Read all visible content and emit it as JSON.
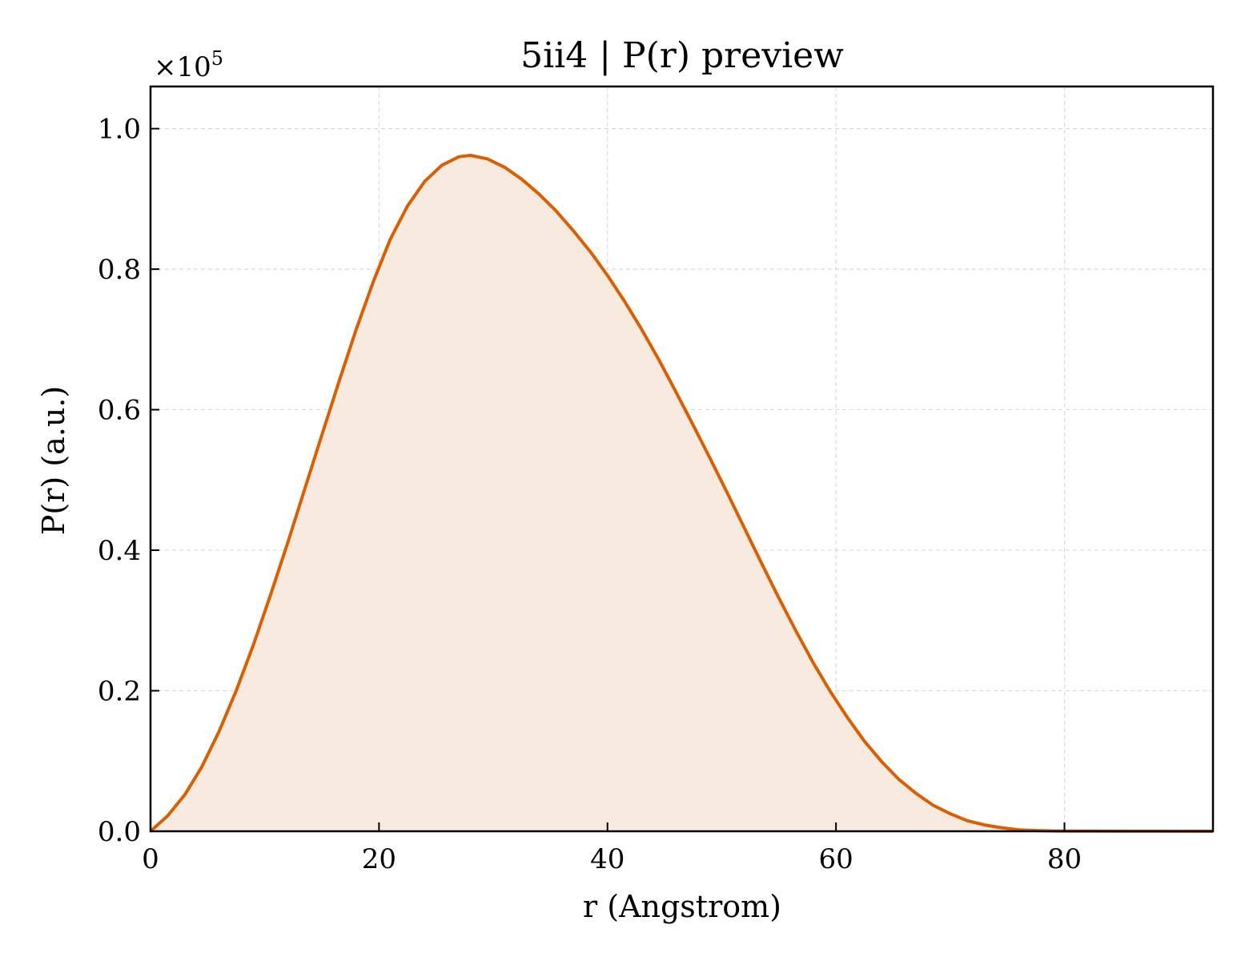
{
  "chart_data": {
    "type": "area",
    "title": "5ii4 | P(r) preview",
    "xlabel": "r (Angstrom)",
    "ylabel": "P(r) (a.u.)",
    "y_multiplier_label": "×10",
    "y_multiplier_exponent": "5",
    "xlim": [
      0,
      93
    ],
    "ylim": [
      0,
      1.06
    ],
    "xticks": [
      0,
      20,
      40,
      60,
      80
    ],
    "xtick_labels": [
      "0",
      "20",
      "40",
      "60",
      "80"
    ],
    "yticks": [
      0.0,
      0.2,
      0.4,
      0.6,
      0.8,
      1.0
    ],
    "ytick_labels": [
      "0.0",
      "0.2",
      "0.4",
      "0.6",
      "0.8",
      "1.0"
    ],
    "grid": true,
    "line_color": "#d95f02",
    "fill_color": "#f8eadf",
    "series": [
      {
        "x": [
          0,
          1.5,
          3.0,
          4.5,
          6.0,
          7.5,
          9.0,
          10.5,
          12.0,
          13.5,
          15.0,
          16.5,
          18.0,
          19.5,
          21.0,
          22.5,
          24.0,
          25.5,
          27.0,
          28.0,
          29.5,
          31.0,
          32.5,
          34.0,
          35.5,
          37.0,
          38.5,
          40.0,
          41.5,
          43.0,
          44.5,
          46.0,
          47.5,
          49.0,
          50.5,
          52.0,
          53.5,
          55.0,
          56.5,
          58.0,
          59.5,
          61.0,
          62.5,
          64.0,
          65.5,
          67.0,
          68.5,
          70.0,
          71.5,
          73.0,
          74.5,
          76.0,
          77.5,
          79.0,
          80.5,
          82.0,
          85.0,
          88.0,
          93.0
        ],
        "y": [
          0.0,
          0.022,
          0.052,
          0.092,
          0.142,
          0.2,
          0.265,
          0.336,
          0.41,
          0.487,
          0.564,
          0.64,
          0.714,
          0.782,
          0.843,
          0.89,
          0.925,
          0.948,
          0.96,
          0.962,
          0.957,
          0.945,
          0.928,
          0.907,
          0.883,
          0.855,
          0.825,
          0.791,
          0.754,
          0.714,
          0.671,
          0.625,
          0.578,
          0.53,
          0.481,
          0.431,
          0.381,
          0.332,
          0.285,
          0.24,
          0.199,
          0.162,
          0.128,
          0.099,
          0.074,
          0.054,
          0.037,
          0.025,
          0.015,
          0.009,
          0.005,
          0.002,
          0.001,
          0.0005,
          0.0003,
          0.0002,
          0.0001,
          0.0001,
          0.0
        ]
      }
    ]
  }
}
